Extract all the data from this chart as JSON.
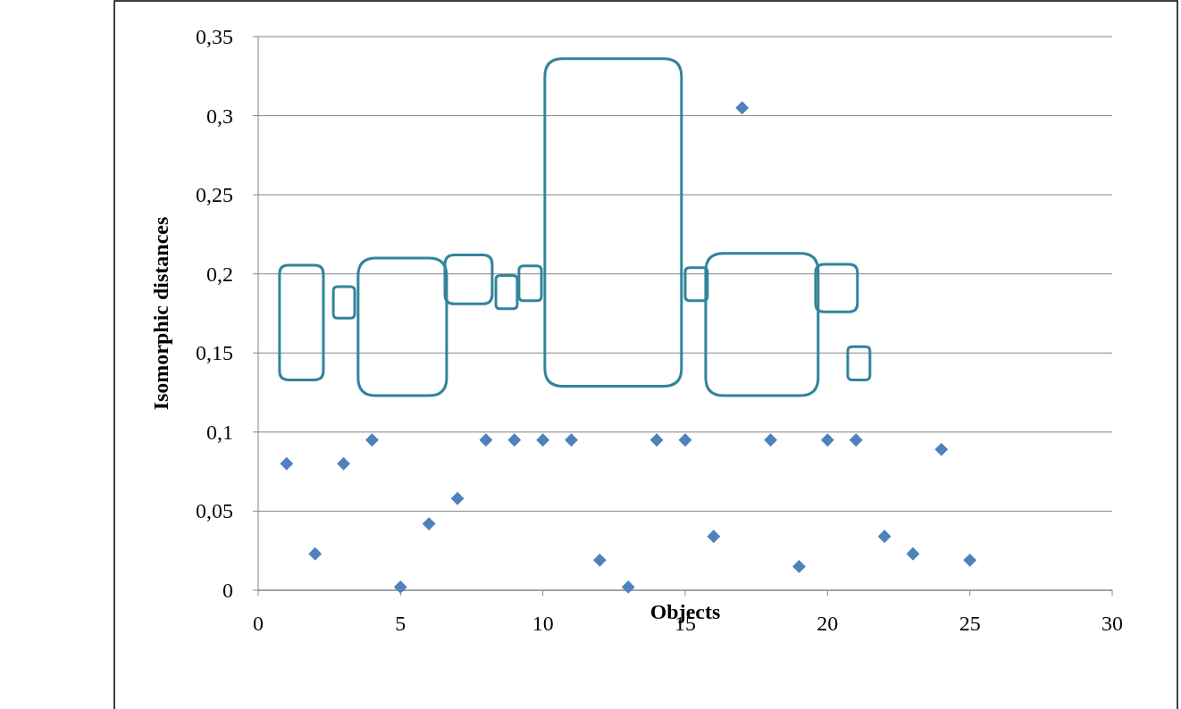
{
  "chart_data": {
    "type": "scatter",
    "xlabel": "Objects",
    "ylabel": "Isomorphic distances",
    "x": [
      1,
      2,
      3,
      4,
      5,
      6,
      7,
      8,
      9,
      10,
      11,
      12,
      13,
      14,
      15,
      16,
      17,
      18,
      19,
      20,
      21,
      22,
      23,
      24,
      25
    ],
    "values": [
      0.08,
      0.023,
      0.08,
      0.095,
      0.002,
      0.042,
      0.058,
      0.095,
      0.095,
      0.095,
      0.095,
      0.019,
      0.002,
      0.095,
      0.095,
      0.034,
      0.305,
      0.095,
      0.015,
      0.095,
      0.095,
      0.034,
      0.023,
      0.089,
      0.019
    ],
    "color": "#4f81bd",
    "marker": "diamond",
    "grid": "y",
    "xlim": [
      0,
      30
    ],
    "xticks": [
      0,
      5,
      10,
      15,
      20,
      25,
      30
    ],
    "ylim": [
      0,
      0.35
    ],
    "yticks": [
      0,
      {
        "value": 0.05,
        "label": "0,05"
      },
      {
        "value": 0.1,
        "label": "0,1"
      },
      {
        "value": 0.15,
        "label": "0,15"
      },
      {
        "value": 0.2,
        "label": "0,2"
      },
      {
        "value": 0.25,
        "label": "0,25"
      },
      {
        "value": 0.3,
        "label": "0,3"
      },
      {
        "value": 0.35,
        "label": "0,35"
      }
    ]
  }
}
